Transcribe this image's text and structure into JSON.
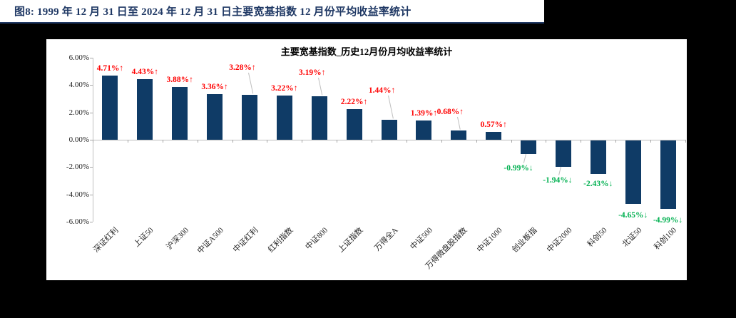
{
  "figure_title": "图8:  1999 年 12 月 31 日至 2024 年 12 月 31 日主要宽基指数 12 月份平均收益率统计",
  "chart_data": {
    "type": "bar",
    "title": "主要宽基指数_历史12月份月均收益率统计",
    "categories": [
      "深证红利",
      "上证50",
      "沪深300",
      "中证A500",
      "中证红利",
      "红利指数",
      "中证800",
      "上证指数",
      "万得全A",
      "中证500",
      "万得微盘股指数",
      "中证1000",
      "创业板指",
      "中证2000",
      "科创50",
      "北证50",
      "科创100"
    ],
    "values": [
      4.71,
      4.43,
      3.88,
      3.36,
      3.28,
      3.22,
      3.19,
      2.22,
      1.44,
      1.39,
      0.68,
      0.57,
      -0.99,
      -1.94,
      -2.43,
      -4.65,
      -4.99
    ],
    "labels": [
      "4.71%↑",
      "4.43%↑",
      "3.88%↑",
      "3.36%↑",
      "3.28%↑",
      "3.22%↑",
      "3.19%↑",
      "2.22%↑",
      "1.44%↑",
      "1.39%↑",
      "0.68%↑",
      "0.57%↑",
      "-0.99%↓",
      "-1.94%↓",
      "-2.43%↓",
      "-4.65%↓",
      "-4.99%↓"
    ],
    "y_ticks": [
      "6.00%",
      "4.00%",
      "2.00%",
      "0.00%",
      "-2.00%",
      "-4.00%",
      "-6.00%"
    ],
    "y_tick_values": [
      6,
      4,
      2,
      0,
      -2,
      -4,
      -6
    ],
    "ylim": [
      -6,
      6
    ],
    "grid": "zero-line-only",
    "legend": "none",
    "colors": {
      "bar": "#0f3b66",
      "positive_label": "#ff0000",
      "negative_label": "#00b050",
      "axis": "#bfbfbf",
      "title": "#1f3864",
      "background": "#ffffff",
      "outer_background": "#000000"
    }
  }
}
